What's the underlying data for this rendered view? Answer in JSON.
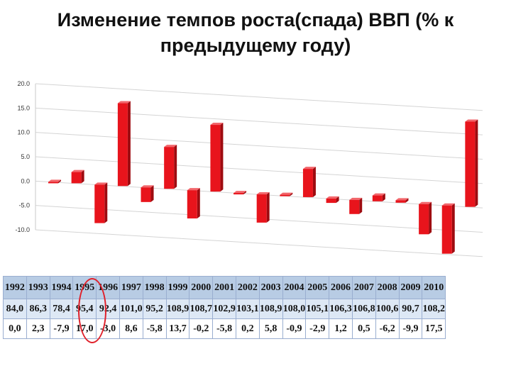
{
  "title": {
    "line1": "Изменение темпов роста(спада) ВВП (% к",
    "line2": "предыдущему году)"
  },
  "chart_data": {
    "type": "bar",
    "ylim": [
      -10,
      20
    ],
    "yticks": [
      "20.0",
      "15.0",
      "10.0",
      "5.0",
      "0.0",
      "-5.0",
      "-10.0"
    ],
    "bar_color": "#e8141c",
    "categories": [
      "1992",
      "1993",
      "1994",
      "1995",
      "1996",
      "1997",
      "1998",
      "1999",
      "2000",
      "2001",
      "2002",
      "2003",
      "2004",
      "2005",
      "2006",
      "2007",
      "2008",
      "2009",
      "2010"
    ],
    "values": [
      0.0,
      2.3,
      -7.9,
      17.0,
      -3.0,
      8.6,
      -5.8,
      13.7,
      -0.2,
      -5.8,
      0.2,
      5.8,
      -0.9,
      -2.9,
      1.2,
      0.5,
      -6.2,
      -9.9,
      17.5
    ]
  },
  "table": {
    "years": [
      "1992",
      "1993",
      "1994",
      "1995",
      "1996",
      "1997",
      "1998",
      "1999",
      "2000",
      "2001",
      "2002",
      "2003",
      "2004",
      "2005",
      "2006",
      "2007",
      "2008",
      "2009",
      "2010"
    ],
    "index": [
      "84,0",
      "86,3",
      "78,4",
      "95,4",
      "92,4",
      "101,0",
      "95,2",
      "108,9",
      "108,7",
      "102,9",
      "103,1",
      "108,9",
      "108,0",
      "105,1",
      "106,3",
      "106,8",
      "100,6",
      "90,7",
      "108,2"
    ],
    "growth": [
      "0,0",
      "2,3",
      "-7,9",
      "17,0",
      "-3,0",
      "8,6",
      "-5,8",
      "13,7",
      "-0,2",
      "-5,8",
      "0,2",
      "5,8",
      "-0,9",
      "-2,9",
      "1,2",
      "0,5",
      "-6,2",
      "-9,9",
      "17,5"
    ]
  },
  "highlight_color": "#e0202a"
}
